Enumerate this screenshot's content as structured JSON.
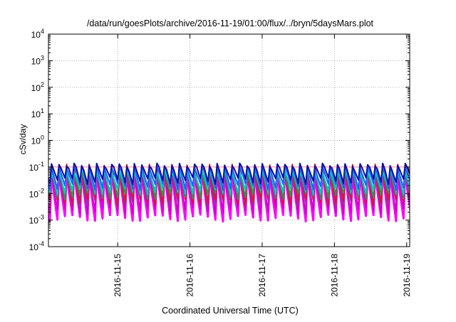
{
  "chart_data": {
    "type": "line",
    "title": "/data/run/goesPlots/archive/2016-11-19/01:00/flux/../bryn/5daysMars.plot",
    "xlabel": "Coordinated Universal Time (UTC)",
    "ylabel": "cSv/day",
    "y_scale": "log",
    "ylim": [
      0.0001,
      10000
    ],
    "y_tick_labels": [
      {
        "base": "10",
        "exp": "-4",
        "value": 0.0001
      },
      {
        "base": "10",
        "exp": "-3",
        "value": 0.001
      },
      {
        "base": "10",
        "exp": "-2",
        "value": 0.01
      },
      {
        "base": "10",
        "exp": "-1",
        "value": 0.1
      },
      {
        "base": "10",
        "exp": "0",
        "value": 1
      },
      {
        "base": "10",
        "exp": "1",
        "value": 10
      },
      {
        "base": "10",
        "exp": "2",
        "value": 100
      },
      {
        "base": "10",
        "exp": "3",
        "value": 1000
      },
      {
        "base": "10",
        "exp": "4",
        "value": 10000
      }
    ],
    "xlim": [
      "2016-11-14T01:00",
      "2016-11-19T01:00"
    ],
    "x_ticks": [
      "2016-11-15",
      "2016-11-16",
      "2016-11-17",
      "2016-11-18",
      "2016-11-19"
    ],
    "grid": true,
    "reference_line": {
      "value": 0.1,
      "color": "#ff8080"
    },
    "sawtooth": {
      "cycles": 48,
      "rise_fraction": 0.22
    },
    "series": [
      {
        "color": "#ff00ff",
        "peak": 0.075,
        "trough": 0.0012
      },
      {
        "color": "#d000d0",
        "peak": 0.07,
        "trough": 0.0022
      },
      {
        "color": "#9a30a0",
        "peak": 0.085,
        "trough": 0.0045
      },
      {
        "color": "#d02020",
        "peak": 0.11,
        "trough": 0.005
      },
      {
        "color": "#20a040",
        "peak": 0.08,
        "trough": 0.008
      },
      {
        "color": "#00c8c8",
        "peak": 0.07,
        "trough": 0.012
      },
      {
        "color": "#2060ff",
        "peak": 0.1,
        "trough": 0.018
      },
      {
        "color": "#1010a0",
        "peak": 0.12,
        "trough": 0.03
      }
    ]
  }
}
